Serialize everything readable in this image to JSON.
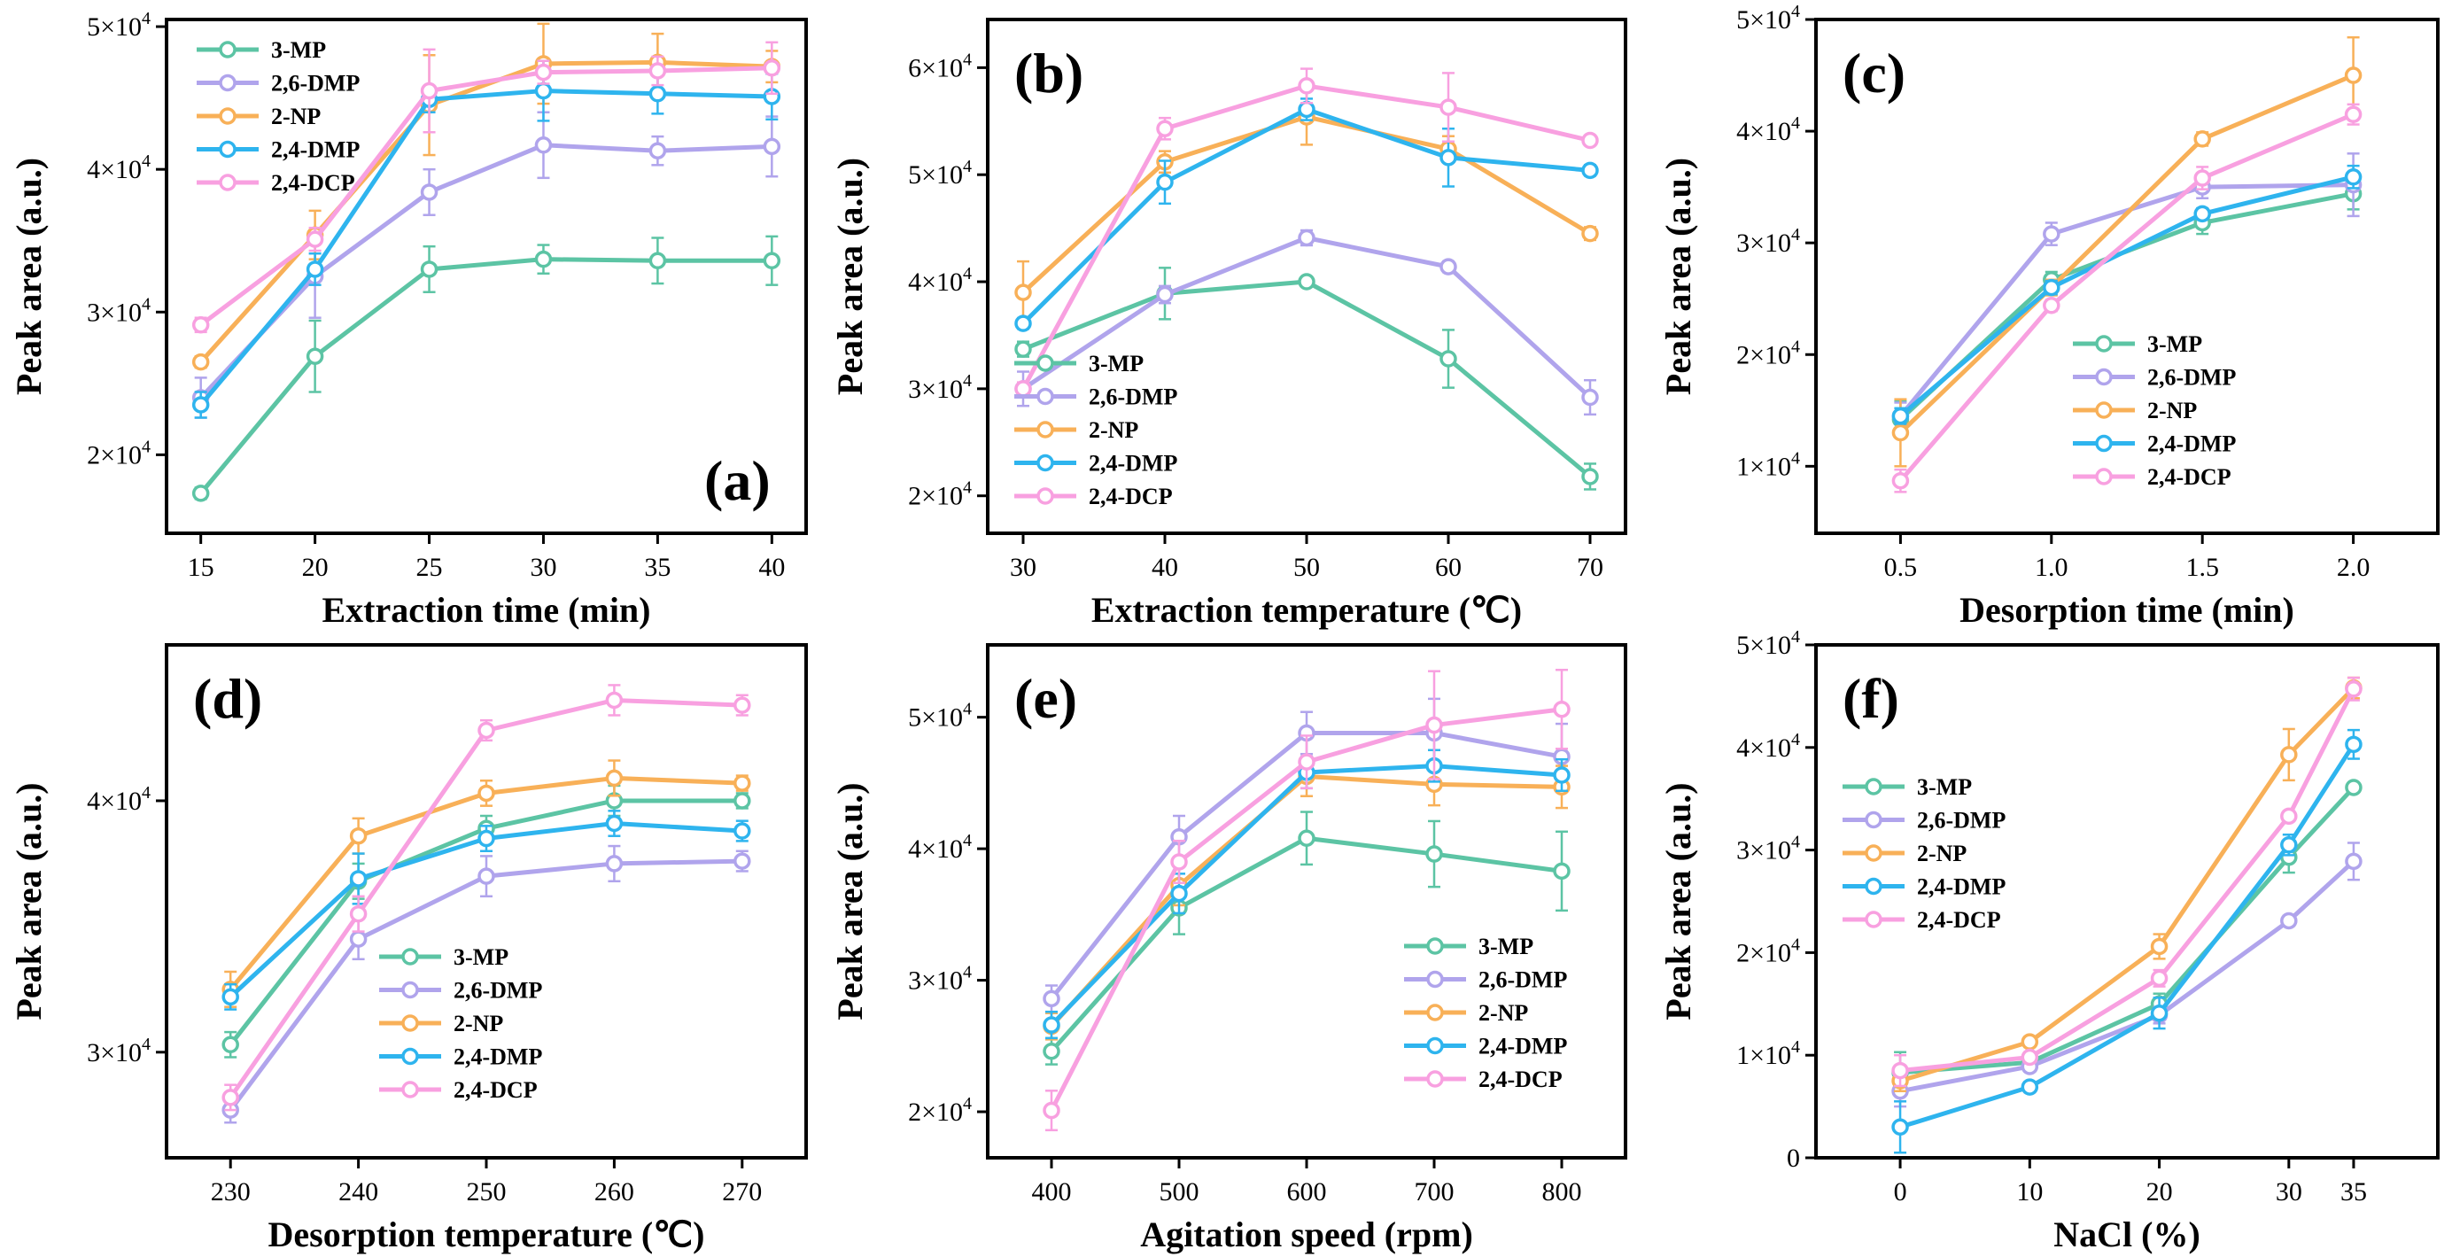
{
  "colors": {
    "3-MP": "#5cc4a4",
    "2,6-DMP": "#b0a4ec",
    "2-NP": "#f8b058",
    "2,4-DMP": "#2eb4ee",
    "2,4-DCP": "#f8a0e0"
  },
  "chart_data": [
    {
      "id": "a",
      "type": "line",
      "panel_label": "(a)",
      "xlabel": "Extraction time (min)",
      "ylabel": "Peak area (a.u.)",
      "x": [
        15,
        20,
        25,
        30,
        35,
        40
      ],
      "x_ticks": [
        "15",
        "20",
        "25",
        "30",
        "35",
        "40"
      ],
      "xlim": [
        13.5,
        41.5
      ],
      "ylim": [
        14500,
        50500
      ],
      "y_ticks": [
        {
          "value": 20000,
          "mant": "2×10",
          "exp": "4"
        },
        {
          "value": 30000,
          "mant": "3×10",
          "exp": "4"
        },
        {
          "value": 40000,
          "mant": "4×10",
          "exp": "4"
        },
        {
          "value": 50000,
          "mant": "5×10",
          "exp": "4"
        }
      ],
      "legend_position": "top-left",
      "series": [
        {
          "name": "3-MP",
          "values": [
            17300,
            26900,
            33000,
            33700,
            33600,
            33600
          ],
          "errors": [
            400,
            2500,
            1600,
            1000,
            1600,
            1700
          ]
        },
        {
          "name": "2,6-DMP",
          "values": [
            24000,
            32500,
            38400,
            41700,
            41300,
            41600
          ],
          "errors": [
            1400,
            2900,
            1600,
            2300,
            1000,
            2100
          ]
        },
        {
          "name": "2-NP",
          "values": [
            26500,
            35400,
            44500,
            47400,
            47500,
            47200
          ],
          "errors": [
            400,
            1700,
            3500,
            2800,
            2000,
            1100
          ]
        },
        {
          "name": "2,4-DMP",
          "values": [
            23500,
            33000,
            44900,
            45500,
            45300,
            45100
          ],
          "errors": [
            900,
            1100,
            900,
            2100,
            1400,
            1600
          ]
        },
        {
          "name": "2,4-DCP",
          "values": [
            29100,
            35100,
            45500,
            46800,
            46900,
            47100
          ],
          "errors": [
            500,
            800,
            2900,
            800,
            1000,
            1800
          ]
        }
      ]
    },
    {
      "id": "b",
      "type": "line",
      "panel_label": "(b)",
      "xlabel": "Extraction temperature (℃)",
      "ylabel": "Peak area (a.u.)",
      "x": [
        30,
        40,
        50,
        60,
        70
      ],
      "x_ticks": [
        "30",
        "40",
        "50",
        "60",
        "70"
      ],
      "xlim": [
        27.5,
        72.5
      ],
      "ylim": [
        16500,
        64500
      ],
      "y_ticks": [
        {
          "value": 20000,
          "mant": "2×10",
          "exp": "4"
        },
        {
          "value": 30000,
          "mant": "3×10",
          "exp": "4"
        },
        {
          "value": 40000,
          "mant": "4×10",
          "exp": "4"
        },
        {
          "value": 50000,
          "mant": "5×10",
          "exp": "4"
        },
        {
          "value": 60000,
          "mant": "6×10",
          "exp": "4"
        }
      ],
      "legend_position": "bottom-left",
      "series": [
        {
          "name": "3-MP",
          "values": [
            33700,
            38900,
            40000,
            32800,
            21800
          ],
          "errors": [
            700,
            2400,
            400,
            2700,
            1200
          ]
        },
        {
          "name": "2,6-DMP",
          "values": [
            30000,
            38800,
            44100,
            41400,
            29200
          ],
          "errors": [
            1600,
            800,
            700,
            500,
            1600
          ]
        },
        {
          "name": "2-NP",
          "values": [
            39000,
            51200,
            55400,
            52400,
            44500
          ],
          "errors": [
            2900,
            1000,
            2600,
            1200,
            600
          ]
        },
        {
          "name": "2,4-DMP",
          "values": [
            36100,
            49300,
            56100,
            51600,
            50400
          ],
          "errors": [
            500,
            2000,
            1000,
            2700,
            500
          ]
        },
        {
          "name": "2,4-DCP",
          "values": [
            30000,
            54300,
            58300,
            56300,
            53200
          ],
          "errors": [
            600,
            1000,
            1600,
            3200,
            400
          ]
        }
      ]
    },
    {
      "id": "c",
      "type": "line",
      "panel_label": "(c)",
      "xlabel": "Desorption time (min)",
      "ylabel": "Peak area (a.u.)",
      "x": [
        0.5,
        1.0,
        1.5,
        2.0
      ],
      "x_ticks": [
        "0.5",
        "1.0",
        "1.5",
        "2.0"
      ],
      "xlim": [
        0.22,
        2.28
      ],
      "ylim": [
        4000,
        50000
      ],
      "y_ticks": [
        {
          "value": 10000,
          "mant": "1×10",
          "exp": "4"
        },
        {
          "value": 20000,
          "mant": "2×10",
          "exp": "4"
        },
        {
          "value": 30000,
          "mant": "3×10",
          "exp": "4"
        },
        {
          "value": 40000,
          "mant": "4×10",
          "exp": "4"
        },
        {
          "value": 50000,
          "mant": "5×10",
          "exp": "4"
        }
      ],
      "legend_position": "center-right",
      "series": [
        {
          "name": "3-MP",
          "values": [
            14200,
            26700,
            31800,
            34400
          ],
          "errors": [
            1600,
            700,
            1000,
            1400
          ]
        },
        {
          "name": "2,6-DMP",
          "values": [
            14500,
            30800,
            35000,
            35200
          ],
          "errors": [
            1200,
            1000,
            1000,
            2800
          ]
        },
        {
          "name": "2-NP",
          "values": [
            13000,
            26000,
            39300,
            45000
          ],
          "errors": [
            3000,
            700,
            600,
            3400
          ]
        },
        {
          "name": "2,4-DMP",
          "values": [
            14500,
            26000,
            32600,
            35900
          ],
          "errors": [
            700,
            600,
            500,
            1000
          ]
        },
        {
          "name": "2,4-DCP",
          "values": [
            8700,
            24400,
            35800,
            41500
          ],
          "errors": [
            1000,
            500,
            1000,
            900
          ]
        }
      ]
    },
    {
      "id": "d",
      "type": "line",
      "panel_label": "(d)",
      "xlabel": "Desorption temperature (℃)",
      "ylabel": "Peak area (a.u.)",
      "x": [
        230,
        240,
        250,
        260,
        270
      ],
      "x_ticks": [
        "230",
        "240",
        "250",
        "260",
        "270"
      ],
      "xlim": [
        225,
        275
      ],
      "ylim": [
        25800,
        46200
      ],
      "y_ticks": [
        {
          "value": 30000,
          "mant": "3×10",
          "exp": "4"
        },
        {
          "value": 40000,
          "mant": "4×10",
          "exp": "4"
        }
      ],
      "legend_position": "bottom-right",
      "series": [
        {
          "name": "3-MP",
          "values": [
            30300,
            36800,
            38900,
            40000,
            40000
          ],
          "errors": [
            500,
            700,
            500,
            600,
            300
          ]
        },
        {
          "name": "2,6-DMP",
          "values": [
            27700,
            34500,
            37000,
            37500,
            37600
          ],
          "errors": [
            500,
            800,
            800,
            700,
            400
          ]
        },
        {
          "name": "2-NP",
          "values": [
            32500,
            38600,
            40300,
            40900,
            40700
          ],
          "errors": [
            700,
            700,
            500,
            700,
            300
          ]
        },
        {
          "name": "2,4-DMP",
          "values": [
            32200,
            36900,
            38500,
            39100,
            38800
          ],
          "errors": [
            500,
            1000,
            500,
            500,
            400
          ]
        },
        {
          "name": "2,4-DCP",
          "values": [
            28200,
            35500,
            42800,
            44000,
            43800
          ],
          "errors": [
            500,
            700,
            400,
            600,
            400
          ]
        }
      ]
    },
    {
      "id": "e",
      "type": "line",
      "panel_label": "(e)",
      "xlabel": "Agitation speed (rpm)",
      "ylabel": "Peak area (a.u.)",
      "x": [
        400,
        500,
        600,
        700,
        800
      ],
      "x_ticks": [
        "400",
        "500",
        "600",
        "700",
        "800"
      ],
      "xlim": [
        350,
        850
      ],
      "ylim": [
        16500,
        55500
      ],
      "y_ticks": [
        {
          "value": 20000,
          "mant": "2×10",
          "exp": "4"
        },
        {
          "value": 30000,
          "mant": "3×10",
          "exp": "4"
        },
        {
          "value": 40000,
          "mant": "4×10",
          "exp": "4"
        },
        {
          "value": 50000,
          "mant": "5×10",
          "exp": "4"
        }
      ],
      "legend_position": "bottom-right",
      "series": [
        {
          "name": "3-MP",
          "values": [
            24600,
            35500,
            40800,
            39600,
            38300
          ],
          "errors": [
            1000,
            2000,
            2000,
            2500,
            3000
          ]
        },
        {
          "name": "2,6-DMP",
          "values": [
            28600,
            40900,
            48800,
            48800,
            47000
          ],
          "errors": [
            1000,
            1600,
            1600,
            2600,
            2500
          ]
        },
        {
          "name": "2-NP",
          "values": [
            26500,
            37200,
            45500,
            44900,
            44700
          ],
          "errors": [
            1000,
            1500,
            1500,
            1600,
            1600
          ]
        },
        {
          "name": "2,4-DMP",
          "values": [
            26600,
            36600,
            45800,
            46300,
            45600
          ],
          "errors": [
            1000,
            1500,
            1200,
            1200,
            1200
          ]
        },
        {
          "name": "2,4-DCP",
          "values": [
            20100,
            39000,
            46600,
            49400,
            50600
          ],
          "errors": [
            1500,
            1600,
            2000,
            4100,
            3000
          ]
        }
      ]
    },
    {
      "id": "f",
      "type": "line",
      "panel_label": "(f)",
      "xlabel": "NaCl (%)",
      "ylabel": "Peak area (a.u.)",
      "x": [
        0,
        10,
        20,
        30,
        35
      ],
      "x_ticks": [
        "0",
        "10",
        "20",
        "30",
        "35"
      ],
      "x_tick_values": [
        0,
        10,
        20,
        30,
        35
      ],
      "xlim": [
        -6.5,
        41.5
      ],
      "ylim": [
        0,
        50000
      ],
      "y_ticks": [
        {
          "value": 0,
          "mant": "0",
          "exp": ""
        },
        {
          "value": 10000,
          "mant": "1×10",
          "exp": "4"
        },
        {
          "value": 20000,
          "mant": "2×10",
          "exp": "4"
        },
        {
          "value": 30000,
          "mant": "3×10",
          "exp": "4"
        },
        {
          "value": 40000,
          "mant": "4×10",
          "exp": "4"
        },
        {
          "value": 50000,
          "mant": "5×10",
          "exp": "4"
        }
      ],
      "legend_position": "top-left",
      "series": [
        {
          "name": "3-MP",
          "values": [
            8300,
            9300,
            15000,
            29300,
            36100
          ],
          "errors": [
            2000,
            500,
            1000,
            1500,
            400
          ]
        },
        {
          "name": "2,6-DMP",
          "values": [
            6500,
            8900,
            13900,
            23100,
            28900
          ],
          "errors": [
            1500,
            500,
            800,
            500,
            1800
          ]
        },
        {
          "name": "2-NP",
          "values": [
            7500,
            11300,
            20600,
            39300,
            45800
          ],
          "errors": [
            1000,
            500,
            1200,
            2500,
            1000
          ]
        },
        {
          "name": "2,4-DMP",
          "values": [
            3000,
            6900,
            14100,
            30500,
            40300
          ],
          "errors": [
            2500,
            500,
            1500,
            1000,
            1400
          ]
        },
        {
          "name": "2,4-DCP",
          "values": [
            8500,
            9800,
            17500,
            33300,
            45700
          ],
          "errors": [
            1500,
            500,
            800,
            500,
            1100
          ]
        }
      ]
    }
  ]
}
